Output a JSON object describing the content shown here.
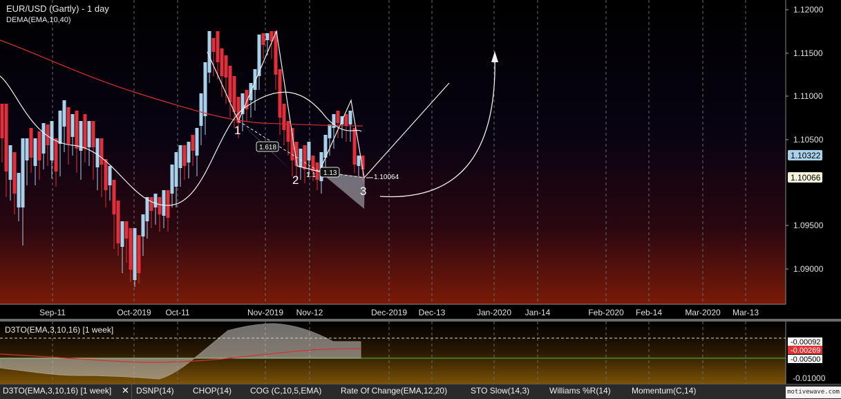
{
  "header": {
    "title": "EUR/USD (Gartly) - 1 day",
    "indicator": "DEMA(EMA,10,40)"
  },
  "price_axis": {
    "ticks": [
      "1.12000",
      "1.11500",
      "1.11000",
      "1.10500",
      "1.09500",
      "1.09000"
    ],
    "badge_blue": "1.10322",
    "badge_white": "1.10066"
  },
  "time_axis": {
    "labels": [
      "Sep-11",
      "Oct-2019",
      "Oct-11",
      "Nov-2019",
      "Nov-12",
      "Dec-2019",
      "Dec-13",
      "Jan-2020",
      "Jan-14",
      "Feb-2020",
      "Feb-14",
      "Mar-2020",
      "Mar-13"
    ]
  },
  "pattern": {
    "point1": "1",
    "point2": "2",
    "point3": "3",
    "ratio_a": "1.618",
    "ratio_b": "1.13",
    "ratio_c": "1.1",
    "price_label": "1.10064"
  },
  "indicator_panel": {
    "title": "D3TO(EMA,3,10,16) [1 week]",
    "ticks": [
      "-0.00500",
      "-0.01000"
    ],
    "badge1": "-0.00092",
    "badge2": "-0.00269"
  },
  "tabs": [
    {
      "label": "D3TO(EMA,3,10,16) [1 week]"
    },
    {
      "label": "DSNP(14)"
    },
    {
      "label": "CHOP(14)"
    },
    {
      "label": "COG (C,10,5,EMA)"
    },
    {
      "label": "Rate Of Change(EMA,12,20)"
    },
    {
      "label": "STO Slow(14,3)"
    },
    {
      "label": "Williams %R(14)"
    },
    {
      "label": "Momentum(C,14)"
    }
  ],
  "watermark": "motivewave.com",
  "colors": {
    "bull": "#a9d2ea",
    "bear": "#e0303c",
    "ema_red": "#d83030",
    "signal_green": "#3cc83c"
  }
}
